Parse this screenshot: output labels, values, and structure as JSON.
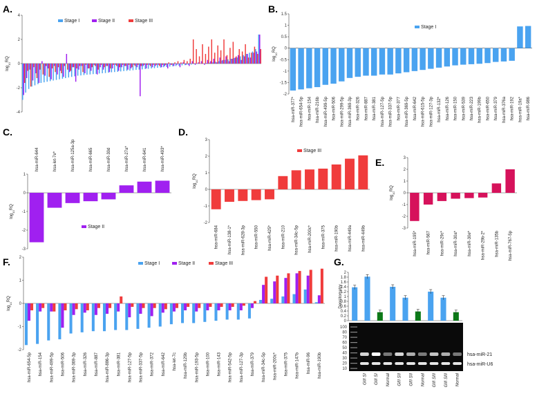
{
  "colors": {
    "stage_i": "#4aa3f0",
    "stage_ii": "#a020f0",
    "stage_iii": "#f03c3c",
    "panel_e": "#d6125b",
    "normal": "#0c7a18"
  },
  "legend": {
    "stage_i": "Stage I",
    "stage_ii": "Stage II",
    "stage_iii": "Stage III"
  },
  "ylabel": "log10RQ",
  "gel_labels": {
    "mir21": "hsa-miR-21",
    "u6": "hsa-miR-U6",
    "densitometry": "Densitometry"
  },
  "chart_data": [
    {
      "panel": "A.",
      "type": "bar",
      "ylabel": "log10RQ",
      "ylim": [
        -4,
        4
      ],
      "yticks": [
        -4,
        -2,
        0,
        2,
        4
      ],
      "legend": [
        "Stage I",
        "Stage II",
        "Stage III"
      ],
      "series": [
        {
          "name": "Stage I",
          "values": [
            -3.0,
            -2.4,
            -2.1,
            -1.9,
            -1.8,
            -1.7,
            -1.6,
            -1.55,
            -1.5,
            -1.45,
            -1.4,
            -1.35,
            -1.3,
            -1.25,
            -1.2,
            -1.15,
            -1.1,
            -1.05,
            -1.0,
            -0.98,
            -0.95,
            -0.92,
            -0.9,
            -0.87,
            -0.85,
            -0.82,
            -0.8,
            -0.78,
            -0.75,
            -0.72,
            -0.7,
            -0.68,
            -0.65,
            -0.62,
            -0.6,
            -0.58,
            -0.55,
            -0.52,
            -0.5,
            -0.48,
            -0.45,
            -0.43,
            -0.4,
            -0.38,
            -0.35,
            -0.33,
            -0.3,
            -0.28,
            -0.25,
            -0.23,
            -0.2,
            -0.18,
            -0.15,
            -0.13,
            -0.1,
            -0.08,
            -0.05,
            -0.03,
            0.0,
            0.02,
            0.05,
            0.08,
            0.1,
            0.15,
            0.2,
            0.25,
            0.3,
            0.35,
            0.4,
            0.45,
            0.5,
            0.6,
            0.7,
            0.8,
            0.9,
            1.0,
            1.2,
            2.4
          ]
        },
        {
          "name": "Stage II",
          "values": [
            -2.6,
            -1.2,
            -0.5,
            -1.4,
            -0.8,
            -1.6,
            0.2,
            -1.0,
            -0.4,
            -1.3,
            -0.2,
            -0.9,
            -0.6,
            -1.1,
            0.8,
            -0.7,
            -0.3,
            -1.5,
            -0.5,
            -0.2,
            -0.8,
            -0.4,
            -0.6,
            -0.1,
            -0.9,
            -0.3,
            -0.5,
            -0.2,
            -0.7,
            -0.4,
            -0.1,
            -0.6,
            -0.3,
            -0.2,
            -0.5,
            -0.4,
            -0.1,
            -0.3,
            -2.7,
            -0.2,
            -0.4,
            -0.1,
            -0.3,
            -0.2,
            -0.1,
            -0.3,
            -0.2,
            -0.4,
            -0.1,
            -0.2,
            -0.1,
            -0.3,
            0.1,
            -0.1,
            -0.2,
            0.2,
            -0.1,
            0.1,
            0.2,
            -0.1,
            0.3,
            0.2,
            0.4,
            0.1,
            0.5,
            0.3,
            0.6,
            0.2,
            0.4,
            0.5,
            0.7,
            0.3,
            0.6,
            0.8,
            0.5,
            0.9,
            1.0,
            2.4
          ]
        },
        {
          "name": "Stage III",
          "values": [
            -1.6,
            -0.6,
            -1.9,
            -0.3,
            -1.2,
            -0.5,
            -0.9,
            -0.2,
            -1.1,
            -0.4,
            -0.7,
            -0.3,
            -0.8,
            -0.2,
            -0.5,
            -0.6,
            -0.3,
            -0.4,
            -0.2,
            -0.7,
            -0.1,
            -0.4,
            -0.3,
            -0.2,
            -0.5,
            -0.1,
            -0.3,
            -0.2,
            -0.4,
            -0.1,
            -0.2,
            -0.3,
            -0.1,
            -0.2,
            -0.1,
            -0.3,
            -0.2,
            -0.1,
            -0.2,
            -0.1,
            -0.1,
            -0.2,
            -0.1,
            -0.1,
            -0.2,
            -0.1,
            -0.1,
            0.1,
            -0.1,
            0.1,
            0.2,
            0.1,
            0.3,
            0.2,
            0.4,
            2.0,
            1.2,
            0.6,
            1.6,
            0.8,
            1.4,
            2.0,
            0.9,
            1.5,
            1.1,
            2.0,
            0.7,
            1.3,
            1.8,
            0.6,
            1.2,
            1.0,
            1.6,
            0.5,
            0.9,
            1.4,
            0.8,
            1.2
          ]
        }
      ]
    },
    {
      "panel": "B.",
      "type": "bar",
      "ylabel": "log10RQ",
      "ylim": [
        -2,
        1.5
      ],
      "yticks": [
        -2,
        -1.5,
        -1,
        -0.5,
        0,
        0.5,
        1,
        1.5
      ],
      "legend": [
        "Stage I"
      ],
      "categories": [
        "hsa-miR-377*",
        "hsa-miR-654-5p",
        "hsa-miR-154",
        "hsa-miR-216b",
        "hsa-miR-499-5p",
        "hsa-miR-506",
        "hsa-miR-299-5p",
        "hsa-miR-369-3p",
        "hsa-miR-326",
        "hsa-miR-887",
        "hsa-miR-381",
        "hsa-miR-127-5p",
        "hsa-miR-337-5p",
        "hsa-miR-377",
        "hsa-miR-369-5p",
        "hsa-miR-642",
        "hsa-miR-615-5p",
        "hsa-miR-127-3p",
        "hsa-miR-132*",
        "hsa-miR-126",
        "hsa-miR-150",
        "hsa-miR-539",
        "hsa-miR-223",
        "hsa-miR-199b",
        "hsa-miR-650",
        "hsa-miR-379",
        "hsa-miR-376a",
        "hsa-miR-192",
        "hsa-miR-19a*",
        "hsa-miR-986"
      ],
      "values": [
        -1.85,
        -1.8,
        -1.75,
        -1.7,
        -1.6,
        -1.55,
        -1.45,
        -1.3,
        -1.25,
        -1.2,
        -1.2,
        -1.15,
        -1.15,
        -1.1,
        -1.05,
        -1.0,
        -0.95,
        -0.9,
        -0.85,
        -0.8,
        -0.75,
        -0.72,
        -0.7,
        -0.68,
        -0.65,
        -0.6,
        -0.58,
        -0.55,
        0.95,
        0.97
      ]
    },
    {
      "panel": "C.",
      "type": "bar",
      "ylabel": "log10RQ",
      "ylim": [
        -3,
        1
      ],
      "yticks": [
        -3,
        -2,
        -1,
        0,
        1
      ],
      "legend": [
        "Stage II"
      ],
      "categories": [
        "hsa-miR-644",
        "hsa-let-7e*",
        "hsa-miR-125a-3p",
        "hsa-miR-665",
        "hsa-miR-30d",
        "hsa-miR-27a*",
        "hsa-miR-641",
        "hsa-miR-493*"
      ],
      "values": [
        -2.65,
        -0.8,
        -0.55,
        -0.45,
        -0.35,
        0.4,
        0.6,
        0.65
      ]
    },
    {
      "panel": "D.",
      "type": "bar",
      "ylabel": "log10RQ",
      "ylim": [
        -2,
        3
      ],
      "yticks": [
        -2,
        -1,
        0,
        1,
        2,
        3
      ],
      "legend": [
        "Stage III"
      ],
      "categories": [
        "hsa-miR-684",
        "hsa-miR-138-1*",
        "hsa-miR-628-3p",
        "hsa-miR-550",
        "hsa-miR-425*",
        "hsa-miR-210",
        "hsa-miR-34c-5p",
        "hsa-miR-200c*",
        "hsa-miR-375",
        "hsa-miR-190b",
        "hsa-miR-449a",
        "hsa-miR-449b"
      ],
      "values": [
        -1.2,
        -0.75,
        -0.7,
        -0.65,
        -0.6,
        0.8,
        1.15,
        1.2,
        1.25,
        1.5,
        1.85,
        2.05
      ]
    },
    {
      "panel": "E.",
      "type": "bar",
      "ylabel": "log10RQ",
      "ylim": [
        -3,
        3
      ],
      "yticks": [
        -3,
        -2,
        -1,
        0,
        1,
        2,
        3
      ],
      "categories": [
        "hsa-miR-195*",
        "hsa-miR-567",
        "hsa-miR-29c*",
        "hsa-miR-30a*",
        "hsa-miR-30e*",
        "hsa-miR-29b-2*",
        "hsa-miR-135b",
        "hsa-miR-767-5p"
      ],
      "values": [
        -2.4,
        -1.0,
        -0.7,
        -0.5,
        -0.45,
        -0.4,
        0.8,
        2.0
      ]
    },
    {
      "panel": "F.",
      "type": "bar",
      "ylabel": "log10RQ",
      "ylim": [
        -2,
        2
      ],
      "yticks": [
        -2,
        -1,
        0,
        1,
        2
      ],
      "legend": [
        "Stage I",
        "Stage II",
        "Stage III"
      ],
      "categories": [
        "hsa-miR-654-5p",
        "hsa-miR-154",
        "hsa-miR-499-5p",
        "hsa-miR-506",
        "hsa-miR-369-3p",
        "hsa-miR-326",
        "hsa-miR-887",
        "hsa-miR-886-3p",
        "hsa-miR-381",
        "hsa-miR-127-5p",
        "hsa-miR-337-5p",
        "hsa-miR-372",
        "hsa-miR-642",
        "hsa-let-7c",
        "hsa-miR-129b",
        "hsa-miR-193-5p",
        "hsa-miR-100",
        "hsa-miR-143",
        "hsa-miR-542-5p",
        "hsa-miR-127-3p",
        "hsa-miR-379",
        "hsa-miR-34c-5p",
        "hsa-miR-200c*",
        "hsa-miR-375",
        "hsa-miR-147b",
        "hsa-miR-96",
        "hsa-miR-190b"
      ],
      "series": [
        {
          "name": "Stage I",
          "values": [
            -1.8,
            -1.75,
            -1.6,
            -1.55,
            -1.3,
            -1.25,
            -1.2,
            -1.2,
            -1.15,
            -1.15,
            -1.1,
            -1.05,
            -1.0,
            -0.9,
            -0.85,
            -0.85,
            -0.8,
            -0.75,
            -0.7,
            -0.7,
            -0.65,
            0.15,
            0.2,
            0.3,
            0.4,
            0.6,
            0.05
          ]
        },
        {
          "name": "Stage II",
          "values": [
            -0.75,
            -0.35,
            -0.35,
            -1.05,
            -0.5,
            -0.4,
            -0.5,
            -0.45,
            -0.35,
            -0.6,
            -0.45,
            -0.55,
            -0.4,
            -0.35,
            -0.3,
            -0.35,
            -0.3,
            -0.3,
            -0.3,
            -0.3,
            -0.2,
            0.8,
            0.95,
            1.1,
            1.3,
            1.2,
            0.35
          ]
        },
        {
          "name": "Stage III",
          "values": [
            -0.3,
            -0.2,
            -0.35,
            -0.3,
            -0.25,
            -0.3,
            -0.2,
            -0.2,
            0.3,
            -0.15,
            -0.2,
            -0.2,
            -0.25,
            -0.2,
            -0.15,
            -0.2,
            -0.15,
            -0.15,
            -0.15,
            -0.1,
            0.1,
            1.15,
            1.2,
            1.3,
            1.4,
            1.45,
            1.5
          ]
        }
      ]
    },
    {
      "panel": "G.",
      "type": "bar",
      "ylabel": "Densitometry",
      "ylim": [
        0,
        2
      ],
      "yticks": [
        0,
        0.2,
        0.4,
        0.6,
        0.8,
        1,
        1.2,
        1.4,
        1.6,
        1.8,
        2
      ],
      "categories": [
        "GIII SI",
        "GIII SI",
        "Normal",
        "GIII SII",
        "GIII SII",
        "Normal",
        "GIII SIII",
        "GIII SIII",
        "Normal"
      ],
      "values": [
        1.38,
        1.82,
        0.35,
        1.4,
        0.95,
        0.38,
        1.2,
        0.95,
        0.35
      ],
      "ladder_labels": [
        "100",
        "80",
        "70",
        "60",
        "50",
        "40",
        "30",
        "20",
        "10"
      ]
    }
  ]
}
